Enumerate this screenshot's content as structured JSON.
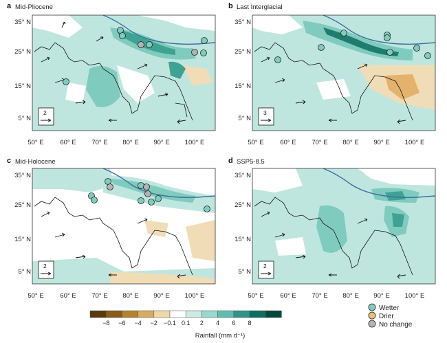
{
  "panels": [
    {
      "letter": "a",
      "title": "Mid-Pliocene",
      "ref_vector": "2"
    },
    {
      "letter": "b",
      "title": "Last Interglacial",
      "ref_vector": "3"
    },
    {
      "letter": "c",
      "title": "Mid-Holocene",
      "ref_vector": "2"
    },
    {
      "letter": "d",
      "title": "SSP5-8.5",
      "ref_vector": "2"
    }
  ],
  "lat_ticks": [
    "35° N",
    "25° N",
    "15° N",
    "5° N"
  ],
  "lon_ticks": [
    "50° E",
    "60° E",
    "70° E",
    "80° E",
    "90° E",
    "100° E"
  ],
  "colorbar": {
    "title": "Rainfall (mm d⁻¹)",
    "tick_labels": [
      "−8",
      "−6",
      "−4",
      "−2",
      "−0.1",
      "0.1",
      "2",
      "4",
      "6",
      "8"
    ],
    "colors": [
      "#5a3a0c",
      "#8a5a17",
      "#b5822f",
      "#d5ab62",
      "#eed8a9",
      "#ffffff",
      "#cdeae3",
      "#99d8cc",
      "#62bcae",
      "#2f9685",
      "#0e6e5e",
      "#05473b"
    ]
  },
  "legend": {
    "items": [
      {
        "label": "Wetter",
        "color": "#7fccbe"
      },
      {
        "label": "Drier",
        "color": "#e8bf7e"
      },
      {
        "label": "No change",
        "color": "#b3b3b3"
      }
    ]
  },
  "colors": {
    "river": "#3d6fa3",
    "coast": "#111111",
    "wet_light": "#bfe6de",
    "wet_mid": "#7fccbe",
    "wet_dark": "#3fa393",
    "dry_light": "#f0dcb6"
  }
}
